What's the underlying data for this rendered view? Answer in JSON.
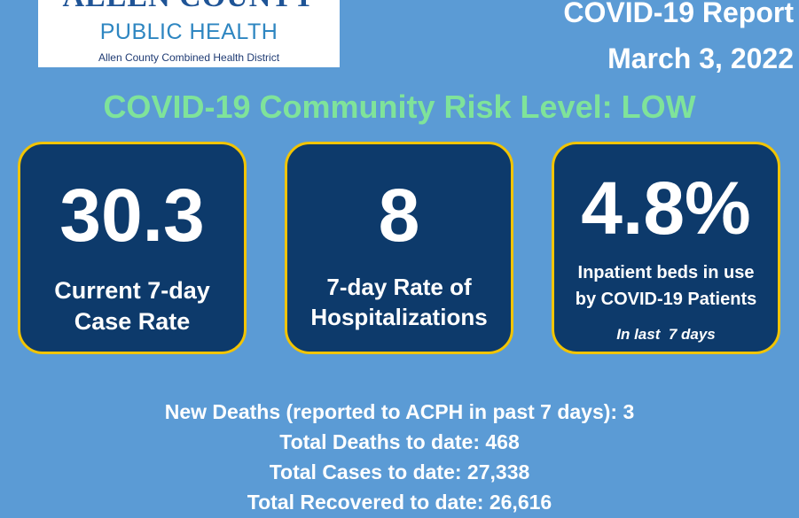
{
  "logo": {
    "org_name": "ALLEN COUNTY",
    "unit_name": "PUBLIC HEALTH",
    "district_name": "Allen County Combined Health District"
  },
  "report": {
    "title": "COVID-19 Report",
    "date": "March 3, 2022"
  },
  "risk_level": {
    "text": "COVID-19 Community Risk Level: LOW",
    "color": "#7fe39a"
  },
  "cards": [
    {
      "value": "30.3",
      "label_line1": "Current 7-day",
      "label_line2": "Case Rate"
    },
    {
      "value": "8",
      "label_line1": "7-day Rate of",
      "label_line2": "Hospitalizations"
    },
    {
      "value": "4.8%",
      "label_line1": "Inpatient beds in use",
      "label_line2": "by COVID-19 Patients",
      "note": "In last  7 days"
    }
  ],
  "stats": {
    "new_deaths": "New Deaths (reported to ACPH in past 7 days): 3",
    "total_deaths": "Total Deaths to date: 468",
    "total_cases": "Total Cases to date: 27,338",
    "total_recovered": "Total Recovered to date: 26,616"
  },
  "colors": {
    "background": "#5b9bd5",
    "card_fill": "#0d3a6b",
    "card_border": "#f2c400",
    "logo_text": "#1f5496"
  }
}
